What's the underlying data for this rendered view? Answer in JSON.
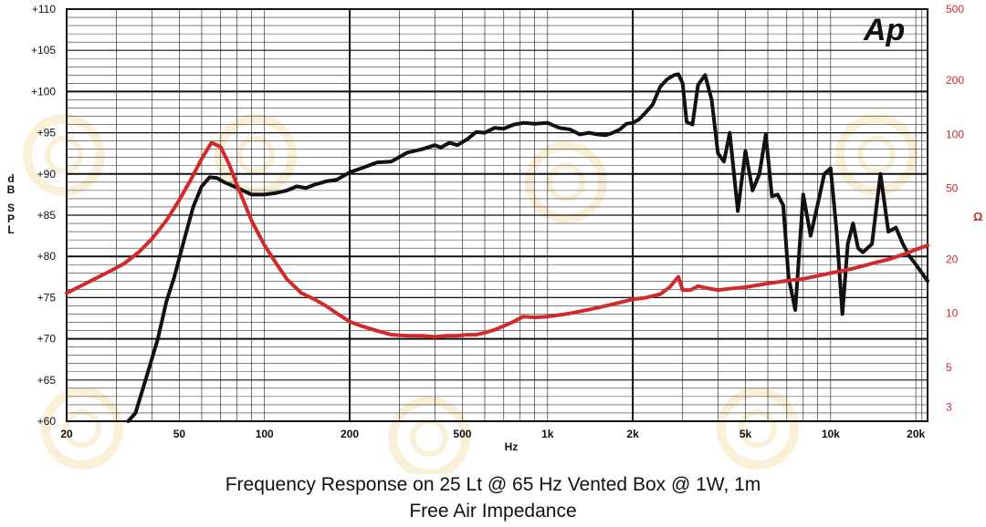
{
  "chart_data": {
    "type": "line",
    "title": "Frequency Response on 25 Lt @ 65 Hz Vented Box @ 1W, 1m",
    "subtitle": "Free Air Impedance",
    "xlabel": "Hz",
    "ylabel": "dB SPL",
    "y2label": "Ω",
    "x_scale": "log",
    "xlim": [
      20,
      22000
    ],
    "ylim": [
      60,
      110
    ],
    "y2_scale": "log",
    "y2lim": [
      2.5,
      500
    ],
    "grid": true,
    "x_ticks": [
      {
        "v": 20,
        "label": "20"
      },
      {
        "v": 50,
        "label": "50"
      },
      {
        "v": 100,
        "label": "100"
      },
      {
        "v": 200,
        "label": "200"
      },
      {
        "v": 500,
        "label": "500"
      },
      {
        "v": 1000,
        "label": "1k"
      },
      {
        "v": 2000,
        "label": "2k"
      },
      {
        "v": 5000,
        "label": "5k"
      },
      {
        "v": 10000,
        "label": "10k"
      },
      {
        "v": 20000,
        "label": "20k"
      }
    ],
    "y_ticks": [
      {
        "v": 110,
        "label": "+110"
      },
      {
        "v": 105,
        "label": "+105"
      },
      {
        "v": 100,
        "label": "+100"
      },
      {
        "v": 95,
        "label": "+95"
      },
      {
        "v": 90,
        "label": "+90"
      },
      {
        "v": 85,
        "label": "+85"
      },
      {
        "v": 80,
        "label": "+80"
      },
      {
        "v": 75,
        "label": "+75"
      },
      {
        "v": 70,
        "label": "+70"
      },
      {
        "v": 65,
        "label": "+65"
      },
      {
        "v": 60,
        "label": "+60"
      }
    ],
    "y2_ticks": [
      {
        "v": 500,
        "label": "500"
      },
      {
        "v": 200,
        "label": "200"
      },
      {
        "v": 100,
        "label": "100"
      },
      {
        "v": 50,
        "label": "50"
      },
      {
        "v": 20,
        "label": "20"
      },
      {
        "v": 10,
        "label": "10"
      },
      {
        "v": 5,
        "label": "5"
      },
      {
        "v": 3,
        "label": "3"
      }
    ],
    "series": [
      {
        "color": "#111111",
        "axis": "left",
        "x": [
          33,
          35,
          38,
          42,
          45,
          48,
          52,
          56,
          60,
          64,
          68,
          72,
          78,
          84,
          90,
          100,
          110,
          120,
          130,
          140,
          150,
          165,
          180,
          200,
          220,
          250,
          280,
          320,
          360,
          400,
          420,
          450,
          480,
          520,
          560,
          600,
          650,
          700,
          760,
          820,
          900,
          1000,
          1100,
          1200,
          1300,
          1400,
          1500,
          1600,
          1700,
          1800,
          1900,
          2000,
          2100,
          2200,
          2350,
          2500,
          2650,
          2800,
          2900,
          3000,
          3100,
          3250,
          3400,
          3600,
          3800,
          4000,
          4200,
          4400,
          4700,
          5000,
          5300,
          5600,
          5900,
          6200,
          6500,
          6800,
          7100,
          7500,
          8000,
          8500,
          9000,
          9500,
          10000,
          10500,
          11000,
          11500,
          12000,
          12500,
          13000,
          14000,
          15000,
          16000,
          17000,
          18000,
          19000,
          20000,
          21000,
          22000
        ],
        "values": [
          60,
          61,
          65,
          70,
          74.5,
          77.5,
          82,
          86,
          88.5,
          89.6,
          89.5,
          89,
          88.5,
          88,
          87.5,
          87.5,
          87.7,
          88,
          88.5,
          88.3,
          88.7,
          89.1,
          89.3,
          90.2,
          90.7,
          91.4,
          91.5,
          92.6,
          93,
          93.5,
          93.2,
          93.8,
          93.5,
          94.2,
          95.1,
          95,
          95.6,
          95.5,
          96,
          96.2,
          96.1,
          96.2,
          95.6,
          95.4,
          94.8,
          95,
          94.8,
          94.7,
          95,
          95.4,
          96.1,
          96.2,
          96.6,
          97.3,
          98.4,
          100.6,
          101.5,
          102,
          102.1,
          101,
          96.3,
          96,
          100.8,
          102,
          99,
          92.5,
          91.5,
          95,
          85.5,
          92.8,
          88,
          90,
          94.8,
          87.3,
          87.5,
          86.2,
          77.5,
          73.5,
          87.5,
          82.5,
          86.3,
          90,
          90.7,
          83,
          73,
          81.5,
          84,
          81,
          80.5,
          81.5,
          90,
          83,
          83.5,
          81.5,
          80,
          79,
          78,
          77
        ]
      },
      {
        "color": "#d02a2a",
        "axis": "right",
        "x": [
          20,
          22,
          25,
          28,
          32,
          36,
          40,
          45,
          50,
          55,
          60,
          65,
          70,
          75,
          80,
          90,
          100,
          110,
          120,
          135,
          150,
          165,
          180,
          200,
          220,
          250,
          280,
          320,
          360,
          400,
          440,
          480,
          520,
          560,
          600,
          650,
          700,
          760,
          820,
          900,
          1000,
          1100,
          1200,
          1400,
          1600,
          1800,
          2000,
          2200,
          2500,
          2700,
          2900,
          3000,
          3200,
          3400,
          3700,
          4000,
          4500,
          5000,
          6000,
          7000,
          8000,
          9000,
          10000,
          11000,
          12000,
          13000,
          14000,
          16000,
          18000,
          20000,
          22000
        ],
        "values": [
          13,
          14,
          15.5,
          17,
          19,
          22,
          26,
          33,
          43,
          56,
          73,
          90,
          85,
          68,
          52,
          33,
          24,
          19,
          15.5,
          13,
          12,
          11,
          10,
          9,
          8.5,
          8,
          7.6,
          7.5,
          7.5,
          7.4,
          7.5,
          7.5,
          7.6,
          7.6,
          7.8,
          8.1,
          8.5,
          9,
          9.6,
          9.5,
          9.6,
          9.8,
          10,
          10.5,
          11,
          11.5,
          12,
          12.2,
          12.8,
          14,
          16,
          13.5,
          13.5,
          14.2,
          13.8,
          13.5,
          13.8,
          14,
          14.7,
          15.2,
          15.6,
          16.2,
          16.8,
          17.3,
          17.8,
          18.4,
          19,
          20,
          21.3,
          22.7,
          24
        ]
      }
    ]
  }
}
